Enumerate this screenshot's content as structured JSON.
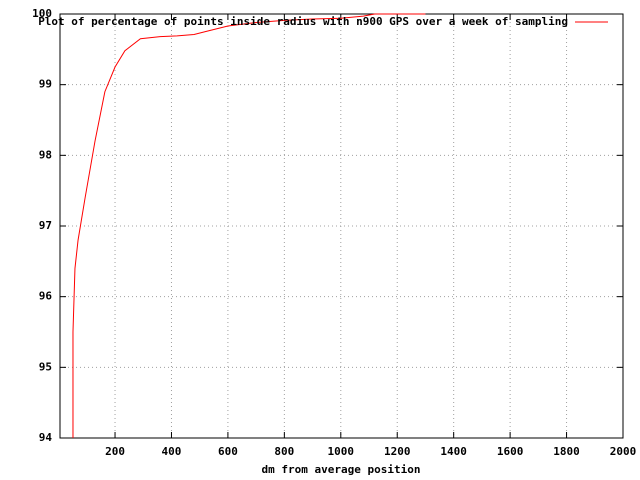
{
  "chart_data": {
    "type": "line",
    "x_label": "dm from average position",
    "x": [
      51,
      51,
      58,
      69,
      94,
      129,
      164,
      200,
      235,
      290,
      360,
      420,
      480,
      520,
      600,
      700,
      800,
      900,
      1000,
      1080,
      1120,
      1300
    ],
    "series": [
      {
        "name": "Plot of percentage of points inside radius with n900 GPS over a week of sampling",
        "color": "#ff0000",
        "values": [
          94,
          95.5,
          96.4,
          96.8,
          97.4,
          98.2,
          98.9,
          99.25,
          99.48,
          99.65,
          99.68,
          99.69,
          99.71,
          99.75,
          99.83,
          99.88,
          99.91,
          99.93,
          99.94,
          99.97,
          100,
          100
        ]
      }
    ],
    "xlim": [
      5,
      2000
    ],
    "xticks": [
      200,
      400,
      600,
      800,
      1000,
      1200,
      1400,
      1600,
      1800,
      2000
    ],
    "ylim": [
      94,
      100
    ],
    "yticks": [
      94,
      95,
      96,
      97,
      98,
      99,
      100
    ],
    "grid": true,
    "legend": "top-right"
  }
}
